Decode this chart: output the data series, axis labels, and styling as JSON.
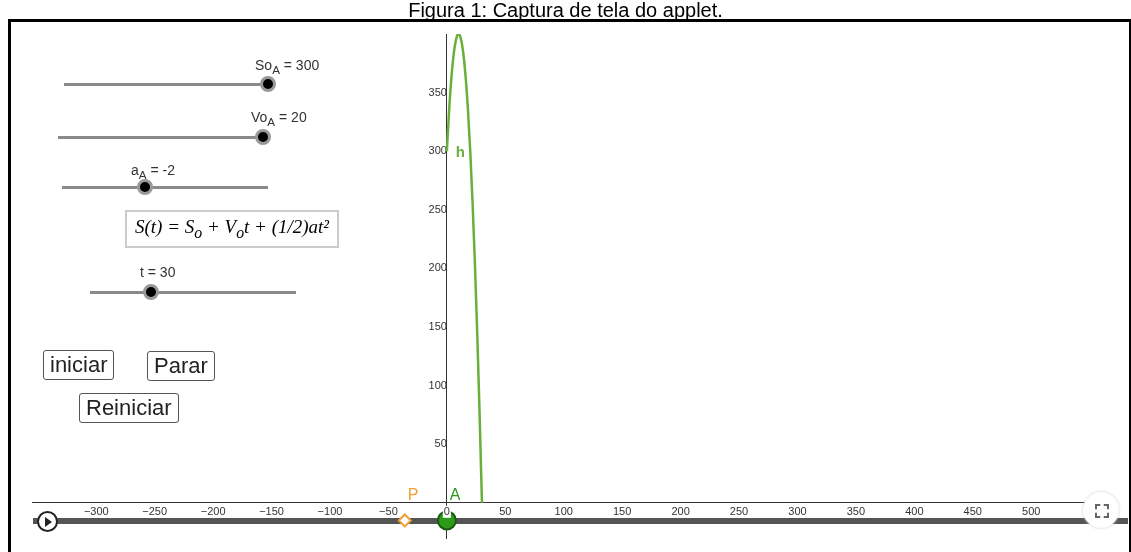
{
  "chart_data": {
    "type": "line",
    "title": "Figura 1: Captura de tela do applet.",
    "annotations": [
      "So$_{A}$ = 300",
      "Vo$_{A}$ = 20",
      "a$_{A}$ = -2",
      "S(t) = S$_{o}$ + V$_{o}$t + (1/2)at²",
      "t = 30",
      "iniciar",
      "Parar",
      "Reiniciar"
    ],
    "series": [
      {
        "name": "h",
        "color": "#6aaf3c",
        "marker": "none",
        "x": [
          0,
          2,
          4,
          6,
          8,
          10,
          12,
          14,
          16,
          18,
          20,
          22,
          24,
          26,
          28,
          30
        ],
        "values": [
          300,
          336,
          364,
          384,
          396,
          400,
          396,
          384,
          364,
          336,
          300,
          256,
          204,
          144,
          76,
          0
        ]
      },
      {
        "name": "A",
        "type": "scatter",
        "color": "#2e9a1a",
        "marker": "circle",
        "x": [
          0
        ],
        "values": [
          -15
        ]
      },
      {
        "name": "P",
        "type": "scatter",
        "color": "#f0a030",
        "marker": "diamond",
        "x": [
          -36
        ],
        "values": [
          -15
        ]
      }
    ],
    "xlim": [
      -355,
      570
    ],
    "ylim": [
      -30,
      400
    ],
    "xticks": [
      -300,
      -250,
      -200,
      -150,
      -100,
      -50,
      0,
      50,
      100,
      150,
      200,
      250,
      300,
      350,
      400,
      450,
      500
    ],
    "yticks": [
      50,
      100,
      150,
      200,
      250,
      300,
      350
    ],
    "grid": false,
    "legend": false
  }
}
